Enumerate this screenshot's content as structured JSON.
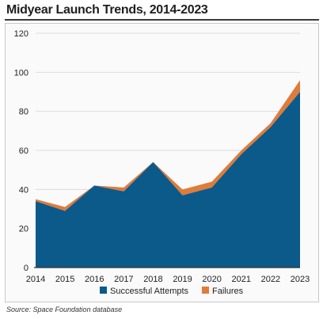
{
  "title": "Midyear Launch Trends, 2014-2023",
  "source": "Source: Space Foundation database",
  "colors": {
    "success": "#0b5a8a",
    "failure": "#e07b39",
    "grid": "#dcdcdc",
    "axis": "#333333"
  },
  "chart_data": {
    "type": "area",
    "stacked": true,
    "title": "Midyear Launch Trends, 2014-2023",
    "xlabel": "",
    "ylabel": "",
    "x": [
      "2014",
      "2015",
      "2016",
      "2017",
      "2018",
      "2019",
      "2020",
      "2021",
      "2022",
      "2023"
    ],
    "ylim": [
      0,
      120
    ],
    "yticks": [
      0,
      20,
      40,
      60,
      80,
      100,
      120
    ],
    "grid": true,
    "legend": "bottom",
    "series": [
      {
        "name": "Successful Attempts",
        "color": "#0b5a8a",
        "values": [
          34,
          29,
          42,
          39,
          54,
          37,
          41,
          58,
          72,
          90
        ]
      },
      {
        "name": "Failures",
        "color": "#e07b39",
        "values": [
          1,
          2,
          0,
          2,
          0,
          3,
          3,
          2,
          2,
          6
        ]
      }
    ]
  }
}
